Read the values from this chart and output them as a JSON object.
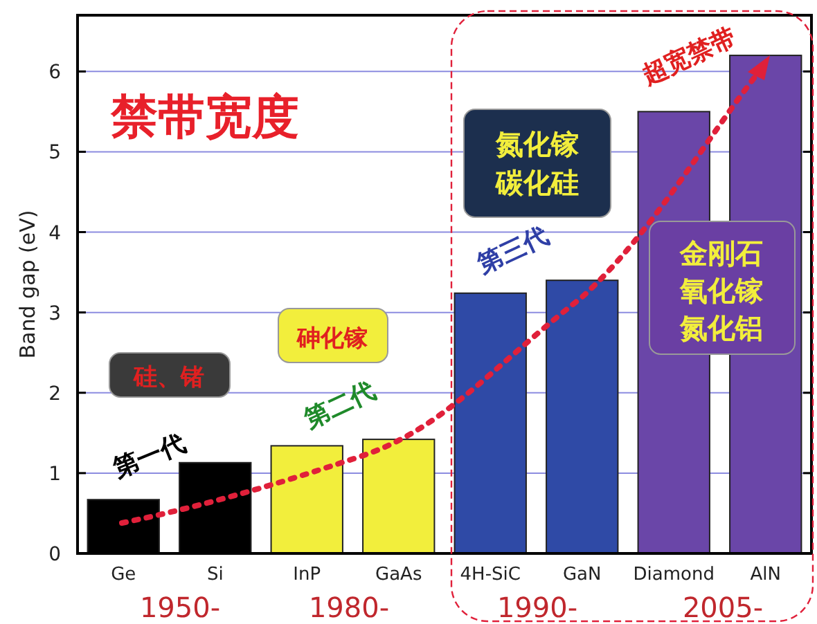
{
  "chart_data": {
    "type": "bar",
    "title": "禁带宽度",
    "ylabel": "Band gap (eV)",
    "categories": [
      "Ge",
      "Si",
      "InP",
      "GaAs",
      "4H-SiC",
      "GaN",
      "Diamond",
      "AlN"
    ],
    "values": [
      0.67,
      1.13,
      1.34,
      1.42,
      3.24,
      3.4,
      5.5,
      6.2
    ],
    "colors": [
      "#000000",
      "#000000",
      "#f2ee3c",
      "#f2ee3c",
      "#2f4aa6",
      "#2f4aa6",
      "#6a46a8",
      "#6a46a8"
    ],
    "ylim": [
      0,
      6.7
    ],
    "yticks": [
      0,
      1,
      2,
      3,
      4,
      5,
      6
    ],
    "grid": "y",
    "annotations": [
      "硅、锗",
      "砷化镓",
      "氮化镓",
      "碳化硅",
      "金刚石",
      "氧化镓",
      "氮化铝",
      "第一代",
      "第二代",
      "第三代",
      "超宽禁带",
      "1950-",
      "1980-",
      "1990-",
      "2005-"
    ]
  }
}
